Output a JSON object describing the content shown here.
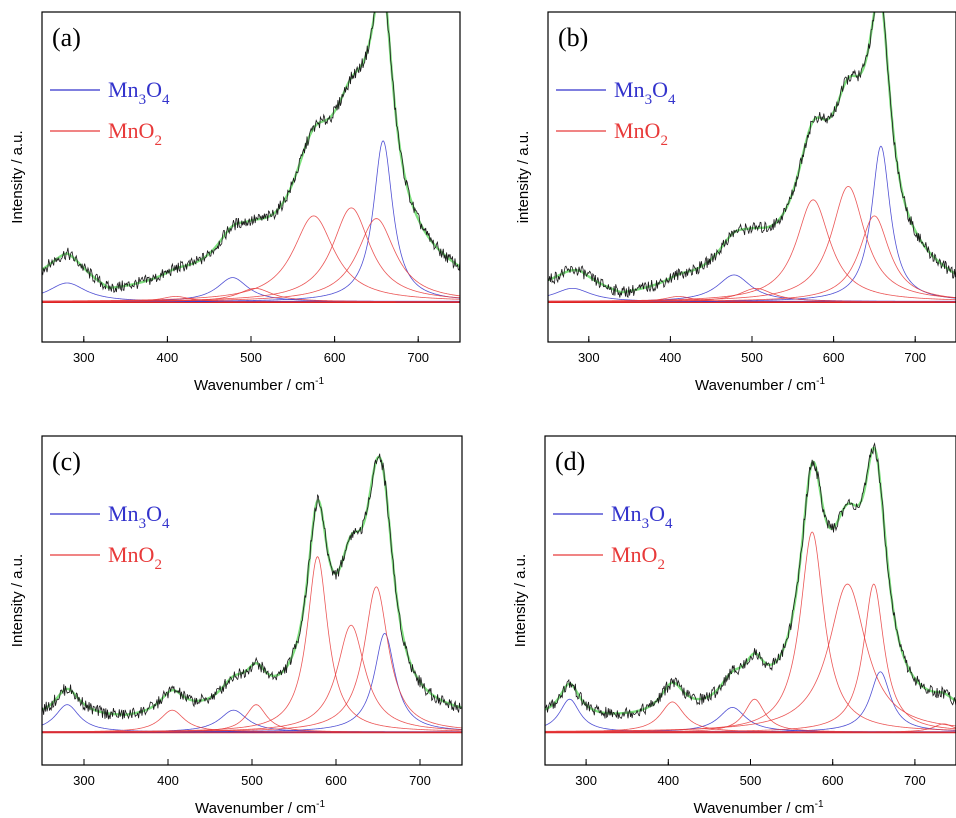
{
  "colors": {
    "mn3o4": "#3333cc",
    "mno2": "#e83a3a",
    "envelope": "#7fe07f",
    "raw": "#1a1a1a",
    "frame": "#000000",
    "baseline_red": "#dd2222",
    "baseline_blue": "#3333cc"
  },
  "chart_data": [
    {
      "type": "line",
      "panel_label": "(a)",
      "xlabel": "Wavenumber / cm",
      "xlabel_sup": "-1",
      "ylabel": "Intensity / a.u.",
      "xlim": [
        250,
        750
      ],
      "ylim": [
        -0.15,
        1.08
      ],
      "xticks": [
        300,
        400,
        500,
        600,
        700
      ],
      "legend": [
        {
          "name": "Mn",
          "sub1": "3",
          "mid": "O",
          "sub2": "4",
          "color_key": "mn3o4"
        },
        {
          "name": "MnO",
          "sub1": "2",
          "mid": "",
          "sub2": "",
          "color_key": "mno2"
        }
      ],
      "background": [
        [
          250,
          0.08
        ],
        [
          280,
          0.1
        ],
        [
          330,
          0.02
        ],
        [
          400,
          0.06
        ],
        [
          500,
          0.13
        ],
        [
          600,
          0.18
        ],
        [
          700,
          0.12
        ],
        [
          750,
          0.07
        ]
      ],
      "series": [
        {
          "group": "mn3o4",
          "peaks": [
            {
              "center": 280,
              "height": 0.07,
              "width": 55
            },
            {
              "center": 478,
              "height": 0.09,
              "width": 45
            },
            {
              "center": 658,
              "height": 0.6,
              "width": 28
            }
          ]
        },
        {
          "group": "mno2",
          "peaks": [
            {
              "center": 410,
              "height": 0.02,
              "width": 40
            },
            {
              "center": 505,
              "height": 0.05,
              "width": 50
            },
            {
              "center": 575,
              "height": 0.32,
              "width": 60
            },
            {
              "center": 620,
              "height": 0.35,
              "width": 55
            },
            {
              "center": 650,
              "height": 0.31,
              "width": 55
            }
          ]
        }
      ]
    },
    {
      "type": "line",
      "panel_label": "(b)",
      "xlabel": "Wavenumber / cm",
      "xlabel_sup": "-1",
      "ylabel": "intensity / a.u.",
      "xlim": [
        250,
        750
      ],
      "ylim": [
        -0.15,
        1.08
      ],
      "xticks": [
        300,
        400,
        500,
        600,
        700
      ],
      "legend": [
        {
          "name": "Mn",
          "sub1": "3",
          "mid": "O",
          "sub2": "4",
          "color_key": "mn3o4"
        },
        {
          "name": "MnO",
          "sub1": "2",
          "mid": "",
          "sub2": "",
          "color_key": "mno2"
        }
      ],
      "background": [
        [
          250,
          0.05
        ],
        [
          290,
          0.06
        ],
        [
          340,
          0.01
        ],
        [
          400,
          0.04
        ],
        [
          500,
          0.1
        ],
        [
          600,
          0.14
        ],
        [
          700,
          0.1
        ],
        [
          750,
          0.05
        ]
      ],
      "series": [
        {
          "group": "mn3o4",
          "peaks": [
            {
              "center": 280,
              "height": 0.05,
              "width": 55
            },
            {
              "center": 478,
              "height": 0.1,
              "width": 50
            },
            {
              "center": 658,
              "height": 0.58,
              "width": 28
            }
          ]
        },
        {
          "group": "mno2",
          "peaks": [
            {
              "center": 410,
              "height": 0.02,
              "width": 40
            },
            {
              "center": 505,
              "height": 0.05,
              "width": 50
            },
            {
              "center": 575,
              "height": 0.38,
              "width": 50
            },
            {
              "center": 618,
              "height": 0.43,
              "width": 50
            },
            {
              "center": 650,
              "height": 0.32,
              "width": 45
            }
          ]
        }
      ]
    },
    {
      "type": "line",
      "panel_label": "(c)",
      "xlabel": "Wavenumber / cm",
      "xlabel_sup": "-1",
      "ylabel": "Intensity / a.u.",
      "xlim": [
        250,
        750
      ],
      "ylim": [
        -0.12,
        1.08
      ],
      "xticks": [
        300,
        400,
        500,
        600,
        700
      ],
      "legend": [
        {
          "name": "Mn",
          "sub1": "3",
          "mid": "O",
          "sub2": "4",
          "color_key": "mn3o4"
        },
        {
          "name": "MnO",
          "sub1": "2",
          "mid": "",
          "sub2": "",
          "color_key": "mno2"
        }
      ],
      "background": [
        [
          250,
          0.05
        ],
        [
          300,
          0.05
        ],
        [
          350,
          0.04
        ],
        [
          450,
          0.06
        ],
        [
          550,
          0.08
        ],
        [
          650,
          0.06
        ],
        [
          750,
          0.05
        ]
      ],
      "series": [
        {
          "group": "mn3o4",
          "peaks": [
            {
              "center": 280,
              "height": 0.1,
              "width": 35
            },
            {
              "center": 478,
              "height": 0.08,
              "width": 40
            },
            {
              "center": 658,
              "height": 0.36,
              "width": 30
            }
          ]
        },
        {
          "group": "mno2",
          "peaks": [
            {
              "center": 405,
              "height": 0.08,
              "width": 35
            },
            {
              "center": 505,
              "height": 0.1,
              "width": 30
            },
            {
              "center": 578,
              "height": 0.64,
              "width": 30
            },
            {
              "center": 618,
              "height": 0.39,
              "width": 40
            },
            {
              "center": 648,
              "height": 0.53,
              "width": 35
            }
          ]
        }
      ]
    },
    {
      "type": "line",
      "panel_label": "(d)",
      "xlabel": "Wavenumber / cm",
      "xlabel_sup": "-1",
      "ylabel": "Intensity / a.u.",
      "xlim": [
        250,
        750
      ],
      "ylim": [
        -0.12,
        1.08
      ],
      "xticks": [
        300,
        400,
        500,
        600,
        700
      ],
      "legend": [
        {
          "name": "Mn",
          "sub1": "3",
          "mid": "O",
          "sub2": "4",
          "color_key": "mn3o4"
        },
        {
          "name": "MnO",
          "sub1": "2",
          "mid": "",
          "sub2": "",
          "color_key": "mno2"
        }
      ],
      "background": [
        [
          250,
          0.05
        ],
        [
          320,
          0.04
        ],
        [
          400,
          0.04
        ],
        [
          500,
          0.05
        ],
        [
          600,
          0.06
        ],
        [
          700,
          0.05
        ],
        [
          750,
          0.05
        ]
      ],
      "series": [
        {
          "group": "mn3o4",
          "peaks": [
            {
              "center": 280,
              "height": 0.12,
              "width": 30
            },
            {
              "center": 478,
              "height": 0.09,
              "width": 40
            },
            {
              "center": 658,
              "height": 0.22,
              "width": 30
            }
          ]
        },
        {
          "group": "mno2",
          "peaks": [
            {
              "center": 405,
              "height": 0.11,
              "width": 35
            },
            {
              "center": 505,
              "height": 0.12,
              "width": 30
            },
            {
              "center": 575,
              "height": 0.73,
              "width": 35
            },
            {
              "center": 618,
              "height": 0.54,
              "width": 55
            },
            {
              "center": 650,
              "height": 0.54,
              "width": 30
            },
            {
              "center": 735,
              "height": 0.03,
              "width": 30
            }
          ]
        }
      ]
    }
  ]
}
